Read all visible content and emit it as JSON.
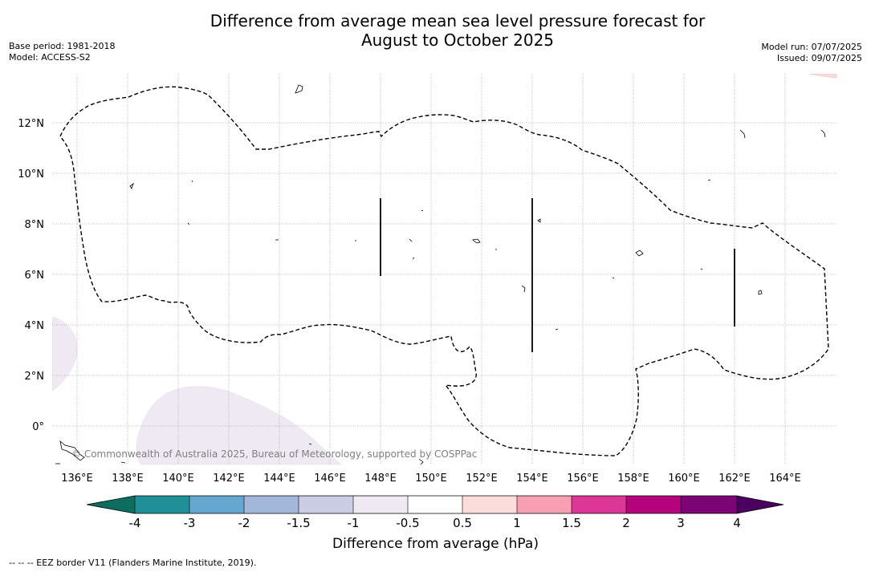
{
  "header": {
    "title_line1": "Difference from average mean sea level pressure forecast for",
    "title_line2": "August to October 2025",
    "base_period": "Base period: 1981-2018",
    "model": "Model: ACCESS-S2",
    "model_run": "Model run: 07/07/2025",
    "issued": "Issued: 09/07/2025"
  },
  "map": {
    "lon_ticks": [
      "136°E",
      "138°E",
      "140°E",
      "142°E",
      "144°E",
      "146°E",
      "148°E",
      "150°E",
      "152°E",
      "154°E",
      "156°E",
      "158°E",
      "160°E",
      "162°E",
      "164°E"
    ],
    "lat_ticks": [
      "12°N",
      "10°N",
      "8°N",
      "6°N",
      "4°N",
      "2°N",
      "0°"
    ],
    "copyright": "© Commonwealth of Australia 2025, Bureau of Meteorology, supported by COSPPac",
    "grid": true,
    "anomaly_regions": [
      {
        "region": "south-west of domain",
        "category": "-1 to -0.5",
        "color": "#efe9f3"
      },
      {
        "region": "far west edge near 3°N",
        "category": "-1 to -0.5",
        "color": "#efe9f3"
      },
      {
        "region": "far north-east corner",
        "category": "0.5 to 1",
        "color": "#fdd9dc"
      }
    ]
  },
  "colorbar": {
    "labels": [
      "-4",
      "-3",
      "-2",
      "-1.5",
      "-1",
      "-0.5",
      "0.5",
      "1",
      "1.5",
      "2",
      "3",
      "4"
    ],
    "colors": [
      "#0d6d5f",
      "#1f9098",
      "#65a7d1",
      "#a3b7da",
      "#cbcde5",
      "#efe9f3",
      "#ffffff",
      "#fddcdc",
      "#f7a0b4",
      "#dc3797",
      "#b5037e",
      "#7c0475",
      "#4b0060"
    ],
    "title": "Difference from average (hPa)"
  },
  "footnote": "--  --  -- EEZ border V11 (Flanders Marine Institute, 2019)."
}
